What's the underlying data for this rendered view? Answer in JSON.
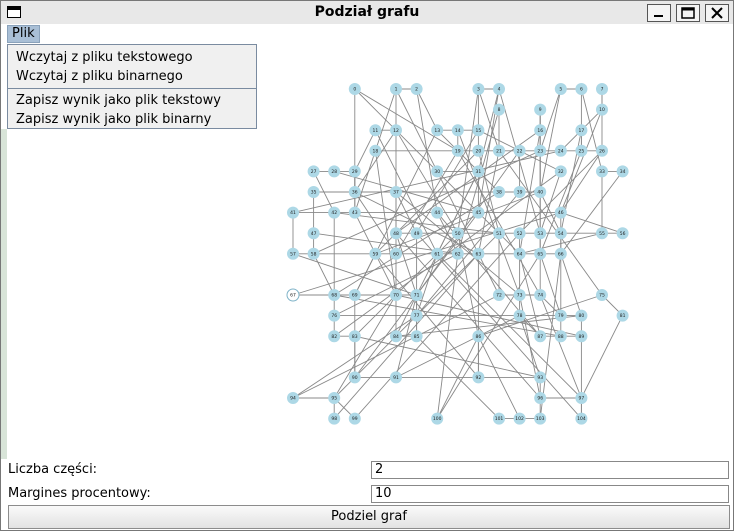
{
  "window": {
    "title": "Podział grafu",
    "icons": [
      "app-window-icon",
      "minimize-icon",
      "maximize-icon",
      "close-icon"
    ]
  },
  "menu": {
    "plik": "Plik",
    "items": [
      "Wczytaj z pliku tekstowego",
      "Wczytaj z pliku binarnego",
      "Zapisz wynik jako plik tekstowy",
      "Zapisz wynik jako plik binarny"
    ]
  },
  "graph": {
    "node_color": "#add8e6",
    "edge_color": "#888888",
    "highlight_node": "67",
    "nodes": [
      {
        "id": "0",
        "c": 3,
        "r": 0
      },
      {
        "id": "1",
        "c": 5,
        "r": 0
      },
      {
        "id": "2",
        "c": 6,
        "r": 0
      },
      {
        "id": "3",
        "c": 9,
        "r": 0
      },
      {
        "id": "4",
        "c": 10,
        "r": 0
      },
      {
        "id": "5",
        "c": 13,
        "r": 0
      },
      {
        "id": "6",
        "c": 14,
        "r": 0
      },
      {
        "id": "7",
        "c": 15,
        "r": 0
      },
      {
        "id": "8",
        "c": 10,
        "r": 1
      },
      {
        "id": "9",
        "c": 12,
        "r": 1
      },
      {
        "id": "10",
        "c": 15,
        "r": 1
      },
      {
        "id": "11",
        "c": 4,
        "r": 2
      },
      {
        "id": "12",
        "c": 5,
        "r": 2
      },
      {
        "id": "13",
        "c": 7,
        "r": 2
      },
      {
        "id": "14",
        "c": 8,
        "r": 2
      },
      {
        "id": "15",
        "c": 9,
        "r": 2
      },
      {
        "id": "16",
        "c": 12,
        "r": 2
      },
      {
        "id": "17",
        "c": 14,
        "r": 2
      },
      {
        "id": "18",
        "c": 4,
        "r": 3
      },
      {
        "id": "19",
        "c": 8,
        "r": 3
      },
      {
        "id": "20",
        "c": 9,
        "r": 3
      },
      {
        "id": "21",
        "c": 10,
        "r": 3
      },
      {
        "id": "22",
        "c": 11,
        "r": 3
      },
      {
        "id": "23",
        "c": 12,
        "r": 3
      },
      {
        "id": "24",
        "c": 13,
        "r": 3
      },
      {
        "id": "25",
        "c": 14,
        "r": 3
      },
      {
        "id": "26",
        "c": 15,
        "r": 3
      },
      {
        "id": "27",
        "c": 1,
        "r": 4
      },
      {
        "id": "28",
        "c": 2,
        "r": 4
      },
      {
        "id": "29",
        "c": 3,
        "r": 4
      },
      {
        "id": "30",
        "c": 7,
        "r": 4
      },
      {
        "id": "31",
        "c": 9,
        "r": 4
      },
      {
        "id": "32",
        "c": 13,
        "r": 4
      },
      {
        "id": "33",
        "c": 15,
        "r": 4
      },
      {
        "id": "34",
        "c": 16,
        "r": 4
      },
      {
        "id": "35",
        "c": 1,
        "r": 5
      },
      {
        "id": "36",
        "c": 3,
        "r": 5
      },
      {
        "id": "37",
        "c": 5,
        "r": 5
      },
      {
        "id": "38",
        "c": 10,
        "r": 5
      },
      {
        "id": "39",
        "c": 11,
        "r": 5
      },
      {
        "id": "40",
        "c": 12,
        "r": 5
      },
      {
        "id": "41",
        "c": 0,
        "r": 6
      },
      {
        "id": "42",
        "c": 2,
        "r": 6
      },
      {
        "id": "43",
        "c": 3,
        "r": 6
      },
      {
        "id": "44",
        "c": 7,
        "r": 6
      },
      {
        "id": "45",
        "c": 9,
        "r": 6
      },
      {
        "id": "46",
        "c": 13,
        "r": 6
      },
      {
        "id": "47",
        "c": 1,
        "r": 7
      },
      {
        "id": "48",
        "c": 5,
        "r": 7
      },
      {
        "id": "49",
        "c": 6,
        "r": 7
      },
      {
        "id": "50",
        "c": 8,
        "r": 7
      },
      {
        "id": "51",
        "c": 10,
        "r": 7
      },
      {
        "id": "52",
        "c": 11,
        "r": 7
      },
      {
        "id": "53",
        "c": 12,
        "r": 7
      },
      {
        "id": "54",
        "c": 13,
        "r": 7
      },
      {
        "id": "55",
        "c": 15,
        "r": 7
      },
      {
        "id": "56",
        "c": 16,
        "r": 7
      },
      {
        "id": "57",
        "c": 0,
        "r": 8
      },
      {
        "id": "58",
        "c": 1,
        "r": 8
      },
      {
        "id": "59",
        "c": 4,
        "r": 8
      },
      {
        "id": "60",
        "c": 5,
        "r": 8
      },
      {
        "id": "61",
        "c": 7,
        "r": 8
      },
      {
        "id": "62",
        "c": 8,
        "r": 8
      },
      {
        "id": "63",
        "c": 9,
        "r": 8
      },
      {
        "id": "64",
        "c": 11,
        "r": 8
      },
      {
        "id": "65",
        "c": 12,
        "r": 8
      },
      {
        "id": "66",
        "c": 13,
        "r": 8
      },
      {
        "id": "67",
        "c": 0,
        "r": 10
      },
      {
        "id": "68",
        "c": 2,
        "r": 10
      },
      {
        "id": "69",
        "c": 3,
        "r": 10
      },
      {
        "id": "70",
        "c": 5,
        "r": 10
      },
      {
        "id": "71",
        "c": 6,
        "r": 10
      },
      {
        "id": "72",
        "c": 10,
        "r": 10
      },
      {
        "id": "73",
        "c": 11,
        "r": 10
      },
      {
        "id": "74",
        "c": 12,
        "r": 10
      },
      {
        "id": "75",
        "c": 15,
        "r": 10
      },
      {
        "id": "76",
        "c": 2,
        "r": 11
      },
      {
        "id": "77",
        "c": 6,
        "r": 11
      },
      {
        "id": "78",
        "c": 11,
        "r": 11
      },
      {
        "id": "79",
        "c": 13,
        "r": 11
      },
      {
        "id": "80",
        "c": 14,
        "r": 11
      },
      {
        "id": "81",
        "c": 16,
        "r": 11
      },
      {
        "id": "82",
        "c": 2,
        "r": 12
      },
      {
        "id": "83",
        "c": 3,
        "r": 12
      },
      {
        "id": "84",
        "c": 5,
        "r": 12
      },
      {
        "id": "85",
        "c": 6,
        "r": 12
      },
      {
        "id": "86",
        "c": 9,
        "r": 12
      },
      {
        "id": "87",
        "c": 12,
        "r": 12
      },
      {
        "id": "88",
        "c": 13,
        "r": 12
      },
      {
        "id": "89",
        "c": 14,
        "r": 12
      },
      {
        "id": "90",
        "c": 3,
        "r": 14
      },
      {
        "id": "91",
        "c": 5,
        "r": 14
      },
      {
        "id": "92",
        "c": 9,
        "r": 14
      },
      {
        "id": "93",
        "c": 12,
        "r": 14
      },
      {
        "id": "94",
        "c": 0,
        "r": 15
      },
      {
        "id": "95",
        "c": 2,
        "r": 15
      },
      {
        "id": "96",
        "c": 12,
        "r": 15
      },
      {
        "id": "97",
        "c": 14,
        "r": 15
      },
      {
        "id": "98",
        "c": 2,
        "r": 16
      },
      {
        "id": "99",
        "c": 3,
        "r": 16
      },
      {
        "id": "100",
        "c": 7,
        "r": 16
      },
      {
        "id": "101",
        "c": 10,
        "r": 16
      },
      {
        "id": "102",
        "c": 11,
        "r": 16
      },
      {
        "id": "103",
        "c": 12,
        "r": 16
      },
      {
        "id": "104",
        "c": 14,
        "r": 16
      }
    ],
    "edges": [
      [
        "0",
        "12"
      ],
      [
        "0",
        "19"
      ],
      [
        "1",
        "2"
      ],
      [
        "1",
        "18"
      ],
      [
        "1",
        "30"
      ],
      [
        "2",
        "13"
      ],
      [
        "2",
        "44"
      ],
      [
        "3",
        "4"
      ],
      [
        "3",
        "21"
      ],
      [
        "3",
        "15"
      ],
      [
        "4",
        "45"
      ],
      [
        "4",
        "31"
      ],
      [
        "5",
        "6"
      ],
      [
        "5",
        "23"
      ],
      [
        "6",
        "25"
      ],
      [
        "7",
        "10"
      ],
      [
        "7",
        "26"
      ],
      [
        "8",
        "21"
      ],
      [
        "9",
        "16"
      ],
      [
        "9",
        "40"
      ],
      [
        "10",
        "24"
      ],
      [
        "11",
        "12"
      ],
      [
        "11",
        "29"
      ],
      [
        "12",
        "36"
      ],
      [
        "12",
        "50"
      ],
      [
        "13",
        "14"
      ],
      [
        "13",
        "38"
      ],
      [
        "14",
        "15"
      ],
      [
        "14",
        "19"
      ],
      [
        "15",
        "20"
      ],
      [
        "15",
        "32"
      ],
      [
        "16",
        "23"
      ],
      [
        "16",
        "64"
      ],
      [
        "17",
        "25"
      ],
      [
        "18",
        "19"
      ],
      [
        "18",
        "43"
      ],
      [
        "19",
        "20"
      ],
      [
        "19",
        "60"
      ],
      [
        "20",
        "21"
      ],
      [
        "20",
        "51"
      ],
      [
        "21",
        "22"
      ],
      [
        "21",
        "63"
      ],
      [
        "22",
        "23"
      ],
      [
        "22",
        "39"
      ],
      [
        "23",
        "24"
      ],
      [
        "23",
        "53"
      ],
      [
        "24",
        "25"
      ],
      [
        "25",
        "26"
      ],
      [
        "26",
        "46"
      ],
      [
        "27",
        "28"
      ],
      [
        "27",
        "42"
      ],
      [
        "28",
        "29"
      ],
      [
        "29",
        "36"
      ],
      [
        "30",
        "31"
      ],
      [
        "31",
        "45"
      ],
      [
        "31",
        "61"
      ],
      [
        "32",
        "53"
      ],
      [
        "33",
        "34"
      ],
      [
        "33",
        "55"
      ],
      [
        "35",
        "47"
      ],
      [
        "36",
        "37"
      ],
      [
        "37",
        "48"
      ],
      [
        "38",
        "39"
      ],
      [
        "39",
        "40"
      ],
      [
        "40",
        "54"
      ],
      [
        "41",
        "42"
      ],
      [
        "41",
        "57"
      ],
      [
        "42",
        "43"
      ],
      [
        "43",
        "44"
      ],
      [
        "44",
        "45"
      ],
      [
        "45",
        "46"
      ],
      [
        "46",
        "66"
      ],
      [
        "47",
        "58"
      ],
      [
        "48",
        "49"
      ],
      [
        "49",
        "50"
      ],
      [
        "50",
        "51"
      ],
      [
        "51",
        "52"
      ],
      [
        "52",
        "53"
      ],
      [
        "53",
        "54"
      ],
      [
        "54",
        "55"
      ],
      [
        "55",
        "56"
      ],
      [
        "57",
        "58"
      ],
      [
        "58",
        "59"
      ],
      [
        "59",
        "60"
      ],
      [
        "60",
        "61"
      ],
      [
        "61",
        "62"
      ],
      [
        "62",
        "63"
      ],
      [
        "63",
        "64"
      ],
      [
        "64",
        "65"
      ],
      [
        "65",
        "66"
      ],
      [
        "67",
        "68"
      ],
      [
        "68",
        "69"
      ],
      [
        "69",
        "70"
      ],
      [
        "70",
        "71"
      ],
      [
        "71",
        "77"
      ],
      [
        "72",
        "73"
      ],
      [
        "73",
        "74"
      ],
      [
        "74",
        "79"
      ],
      [
        "75",
        "81"
      ],
      [
        "76",
        "82"
      ],
      [
        "77",
        "85"
      ],
      [
        "78",
        "87"
      ],
      [
        "79",
        "80"
      ],
      [
        "80",
        "89"
      ],
      [
        "82",
        "83"
      ],
      [
        "84",
        "85"
      ],
      [
        "86",
        "92"
      ],
      [
        "87",
        "88"
      ],
      [
        "88",
        "89"
      ],
      [
        "90",
        "91"
      ],
      [
        "91",
        "92"
      ],
      [
        "92",
        "93"
      ],
      [
        "93",
        "96"
      ],
      [
        "94",
        "95"
      ],
      [
        "95",
        "98"
      ],
      [
        "95",
        "99"
      ],
      [
        "96",
        "97"
      ],
      [
        "96",
        "103"
      ],
      [
        "97",
        "104"
      ],
      [
        "100",
        "86"
      ],
      [
        "101",
        "102"
      ],
      [
        "102",
        "103"
      ],
      [
        "29",
        "43"
      ],
      [
        "36",
        "60"
      ],
      [
        "37",
        "49"
      ],
      [
        "42",
        "76"
      ],
      [
        "43",
        "70"
      ],
      [
        "44",
        "62"
      ],
      [
        "48",
        "71"
      ],
      [
        "49",
        "85"
      ],
      [
        "50",
        "86"
      ],
      [
        "51",
        "72"
      ],
      [
        "52",
        "78"
      ],
      [
        "53",
        "74"
      ],
      [
        "54",
        "88"
      ],
      [
        "56",
        "46"
      ],
      [
        "58",
        "68"
      ],
      [
        "59",
        "69"
      ],
      [
        "60",
        "84"
      ],
      [
        "61",
        "77"
      ],
      [
        "62",
        "100"
      ],
      [
        "63",
        "92"
      ],
      [
        "64",
        "87"
      ],
      [
        "65",
        "79"
      ],
      [
        "66",
        "80"
      ],
      [
        "69",
        "90"
      ],
      [
        "70",
        "95"
      ],
      [
        "71",
        "91"
      ],
      [
        "73",
        "96"
      ],
      [
        "74",
        "97"
      ],
      [
        "77",
        "94"
      ],
      [
        "78",
        "93"
      ],
      [
        "83",
        "90"
      ],
      [
        "85",
        "101"
      ],
      [
        "86",
        "102"
      ],
      [
        "89",
        "104"
      ],
      [
        "0",
        "43"
      ],
      [
        "1",
        "60"
      ],
      [
        "3",
        "50"
      ],
      [
        "4",
        "53"
      ],
      [
        "5",
        "40"
      ],
      [
        "6",
        "33"
      ],
      [
        "8",
        "62"
      ],
      [
        "9",
        "65"
      ],
      [
        "10",
        "46"
      ],
      [
        "11",
        "61"
      ],
      [
        "12",
        "64"
      ],
      [
        "13",
        "69"
      ],
      [
        "14",
        "73"
      ],
      [
        "15",
        "49"
      ],
      [
        "16",
        "48"
      ],
      [
        "17",
        "54"
      ],
      [
        "18",
        "70"
      ],
      [
        "19",
        "74"
      ],
      [
        "20",
        "59"
      ],
      [
        "21",
        "75"
      ],
      [
        "22",
        "71"
      ],
      [
        "23",
        "58"
      ],
      [
        "24",
        "41"
      ],
      [
        "25",
        "65"
      ],
      [
        "26",
        "52"
      ],
      [
        "28",
        "45"
      ],
      [
        "30",
        "72"
      ],
      [
        "31",
        "84"
      ],
      [
        "32",
        "82"
      ],
      [
        "34",
        "66"
      ],
      [
        "35",
        "39"
      ],
      [
        "36",
        "63"
      ],
      [
        "37",
        "73"
      ],
      [
        "38",
        "68"
      ],
      [
        "39",
        "77"
      ],
      [
        "40",
        "59"
      ],
      [
        "42",
        "51"
      ],
      [
        "44",
        "87"
      ],
      [
        "45",
        "90"
      ],
      [
        "46",
        "67"
      ],
      [
        "47",
        "62"
      ],
      [
        "48",
        "96"
      ],
      [
        "49",
        "104"
      ],
      [
        "50",
        "83"
      ],
      [
        "51",
        "95"
      ],
      [
        "52",
        "99"
      ],
      [
        "55",
        "64"
      ],
      [
        "57",
        "71"
      ],
      [
        "59",
        "92"
      ],
      [
        "61",
        "97"
      ],
      [
        "62",
        "76"
      ],
      [
        "63",
        "98"
      ],
      [
        "65",
        "100"
      ],
      [
        "66",
        "103"
      ],
      [
        "68",
        "88"
      ],
      [
        "70",
        "89"
      ],
      [
        "72",
        "94"
      ],
      [
        "75",
        "86"
      ],
      [
        "76",
        "79"
      ],
      [
        "78",
        "91"
      ],
      [
        "80",
        "84"
      ],
      [
        "81",
        "97"
      ],
      [
        "83",
        "93"
      ]
    ]
  },
  "form": {
    "parts_label": "Liczba części:",
    "parts_value": "2",
    "margin_label": "Margines procentowy:",
    "margin_value": "10",
    "submit_label": "Podziel graf"
  }
}
